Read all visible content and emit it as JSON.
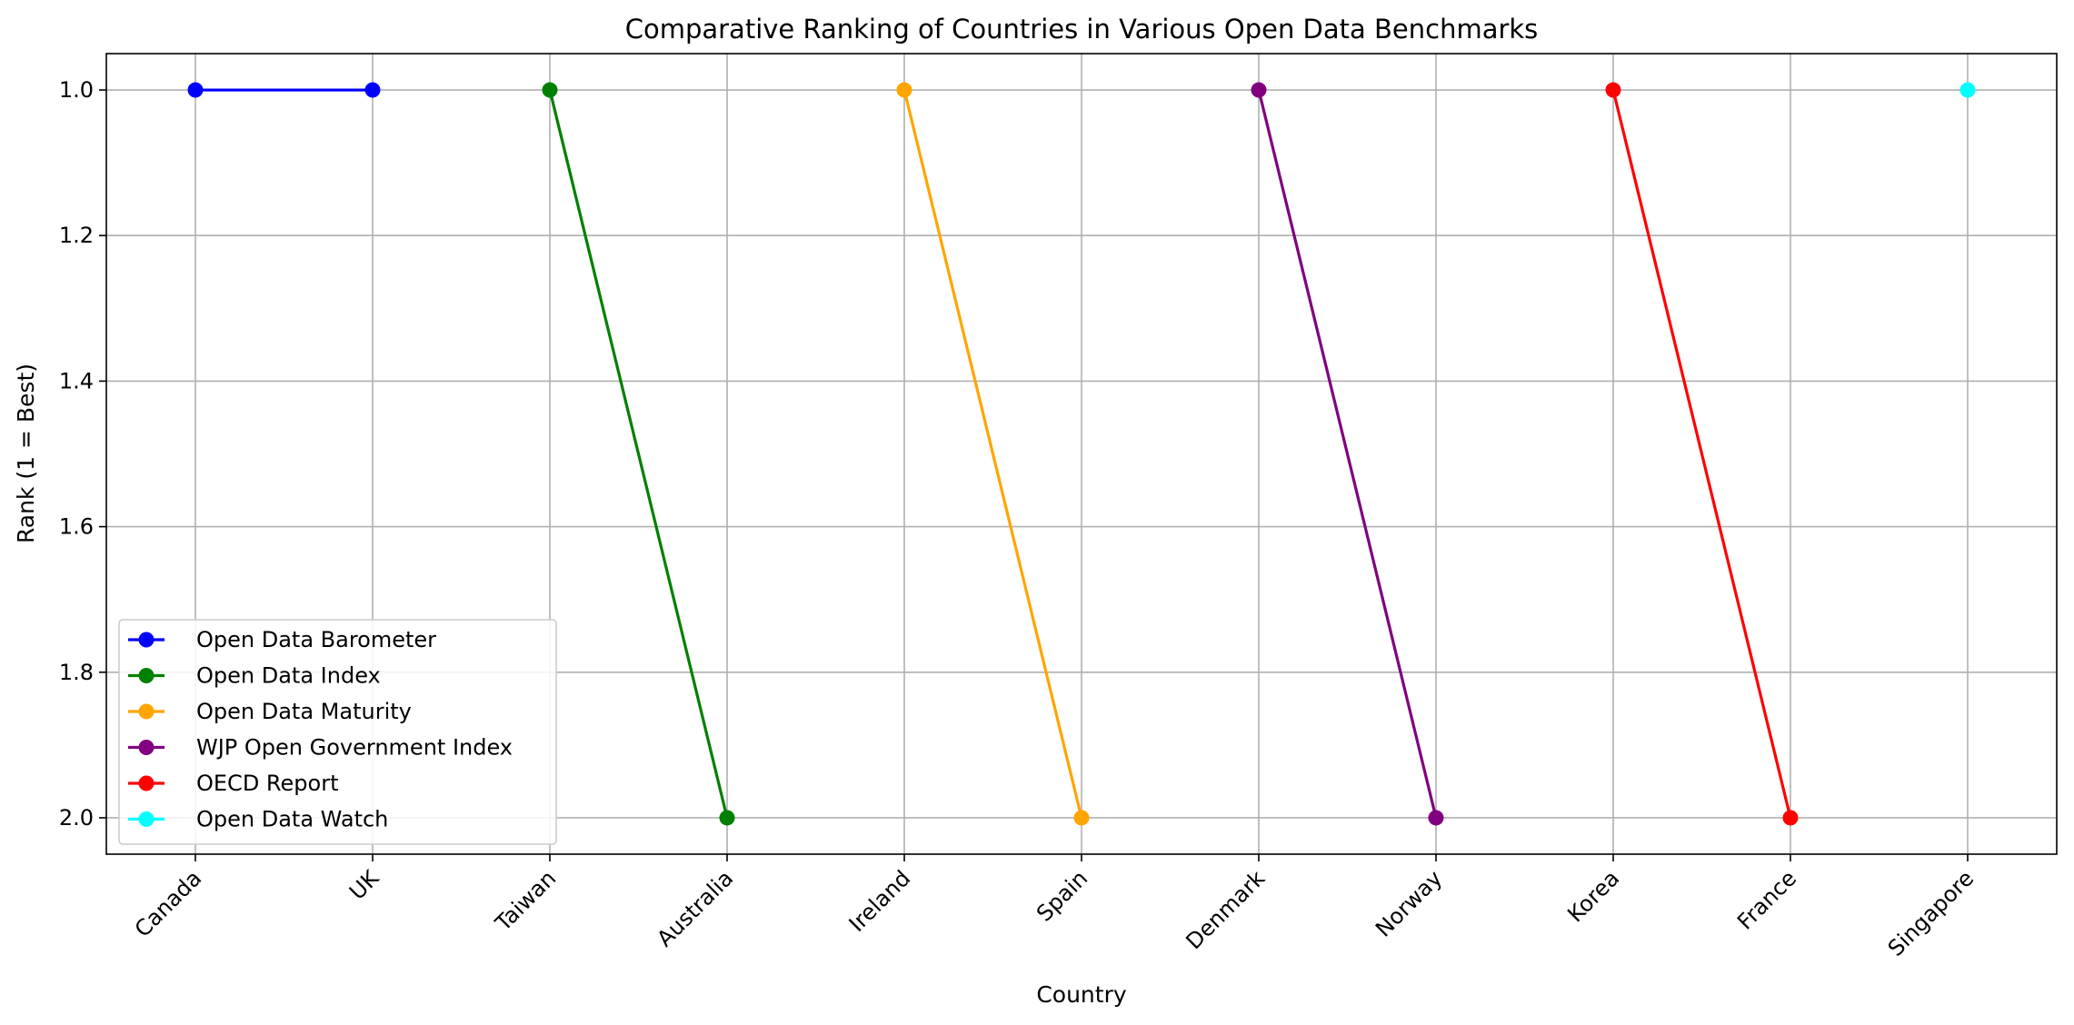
{
  "chart_data": {
    "type": "line",
    "title": "Comparative Ranking of Countries in Various Open Data Benchmarks",
    "xlabel": "Country",
    "ylabel": "Rank (1 = Best)",
    "categories": [
      "Canada",
      "UK",
      "Taiwan",
      "Australia",
      "Ireland",
      "Spain",
      "Denmark",
      "Norway",
      "Korea",
      "France",
      "Singapore"
    ],
    "ylim": [
      2.05,
      0.95
    ],
    "y_inverted": true,
    "yticks": [
      "1.0",
      "1.2",
      "1.4",
      "1.6",
      "1.8",
      "2.0"
    ],
    "grid": true,
    "legend_position": "lower-left",
    "series": [
      {
        "name": "Open Data Barometer",
        "color": "#0000ff",
        "points": [
          {
            "x": "Canada",
            "y": 1
          },
          {
            "x": "UK",
            "y": 1
          }
        ]
      },
      {
        "name": "Open Data Index",
        "color": "#008000",
        "points": [
          {
            "x": "Taiwan",
            "y": 1
          },
          {
            "x": "Australia",
            "y": 2
          }
        ]
      },
      {
        "name": "Open Data Maturity",
        "color": "#ffa500",
        "points": [
          {
            "x": "Ireland",
            "y": 1
          },
          {
            "x": "Spain",
            "y": 2
          }
        ]
      },
      {
        "name": "WJP Open Government Index",
        "color": "#800080",
        "points": [
          {
            "x": "Denmark",
            "y": 1
          },
          {
            "x": "Norway",
            "y": 2
          }
        ]
      },
      {
        "name": "OECD Report",
        "color": "#ff0000",
        "points": [
          {
            "x": "Korea",
            "y": 1
          },
          {
            "x": "France",
            "y": 2
          }
        ]
      },
      {
        "name": "Open Data Watch",
        "color": "#00ffff",
        "points": [
          {
            "x": "Singapore",
            "y": 1
          }
        ]
      }
    ]
  }
}
